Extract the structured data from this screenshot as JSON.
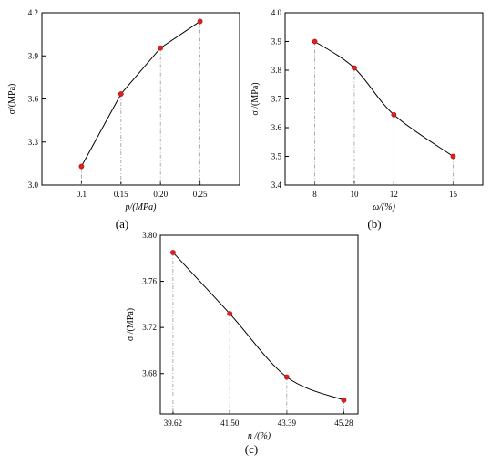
{
  "figure": {
    "background": "#ffffff",
    "marker_color": "#e02020",
    "line_color": "#000000",
    "dropline_color": "#9a9a9a"
  },
  "chart_data": [
    {
      "id": "a",
      "type": "line",
      "panel_label": "(a)",
      "xlabel": "p/(MPa)",
      "ylabel": "σ/(MPa)",
      "x": [
        0.1,
        0.15,
        0.2,
        0.25
      ],
      "y": [
        3.13,
        3.635,
        3.955,
        4.14
      ],
      "xlim": [
        0.05,
        0.3
      ],
      "ylim": [
        3.0,
        4.2
      ],
      "xticks": [
        0.1,
        0.15,
        0.2,
        0.25
      ],
      "xtick_labels": [
        "0.1",
        "0.15",
        "0.20",
        "0.25"
      ],
      "yticks": [
        3.0,
        3.3,
        3.6,
        3.9,
        4.2
      ],
      "ytick_labels": [
        "3.0",
        "3.3",
        "3.6",
        "3.9",
        "4.2"
      ],
      "smooth": false,
      "drop_lines": true,
      "grid": false,
      "legend": "none"
    },
    {
      "id": "b",
      "type": "line",
      "panel_label": "(b)",
      "xlabel": "ω/(%)",
      "ylabel": "σ /(MPa)",
      "x": [
        8,
        10,
        12,
        15
      ],
      "y": [
        3.9,
        3.808,
        3.645,
        3.5
      ],
      "xlim": [
        6.5,
        16.5
      ],
      "ylim": [
        3.4,
        4.0
      ],
      "xticks": [
        8,
        10,
        12,
        15
      ],
      "xtick_labels": [
        "8",
        "10",
        "12",
        "15"
      ],
      "yticks": [
        3.4,
        3.5,
        3.6,
        3.7,
        3.8,
        3.9,
        4.0
      ],
      "ytick_labels": [
        "3.4",
        "3.5",
        "3.6",
        "3.7",
        "3.8",
        "3.9",
        "4.0"
      ],
      "smooth": true,
      "drop_lines": true,
      "grid": false,
      "legend": "none"
    },
    {
      "id": "c",
      "type": "line",
      "panel_label": "(c)",
      "xlabel": "n /(%)",
      "ylabel": "σ /(MPa)",
      "x": [
        39.62,
        41.5,
        43.39,
        45.28
      ],
      "y": [
        3.785,
        3.732,
        3.677,
        3.657
      ],
      "xlim": [
        39.2,
        45.75
      ],
      "ylim": [
        3.645,
        3.8
      ],
      "xticks": [
        39.62,
        41.5,
        43.39,
        45.28
      ],
      "xtick_labels": [
        "39.62",
        "41.50",
        "43.39",
        "45.28"
      ],
      "yticks": [
        3.68,
        3.72,
        3.76,
        3.8
      ],
      "ytick_labels": [
        "3.68",
        "3.72",
        "3.76",
        "3.80"
      ],
      "smooth": true,
      "drop_lines": true,
      "grid": false,
      "legend": "none"
    }
  ]
}
